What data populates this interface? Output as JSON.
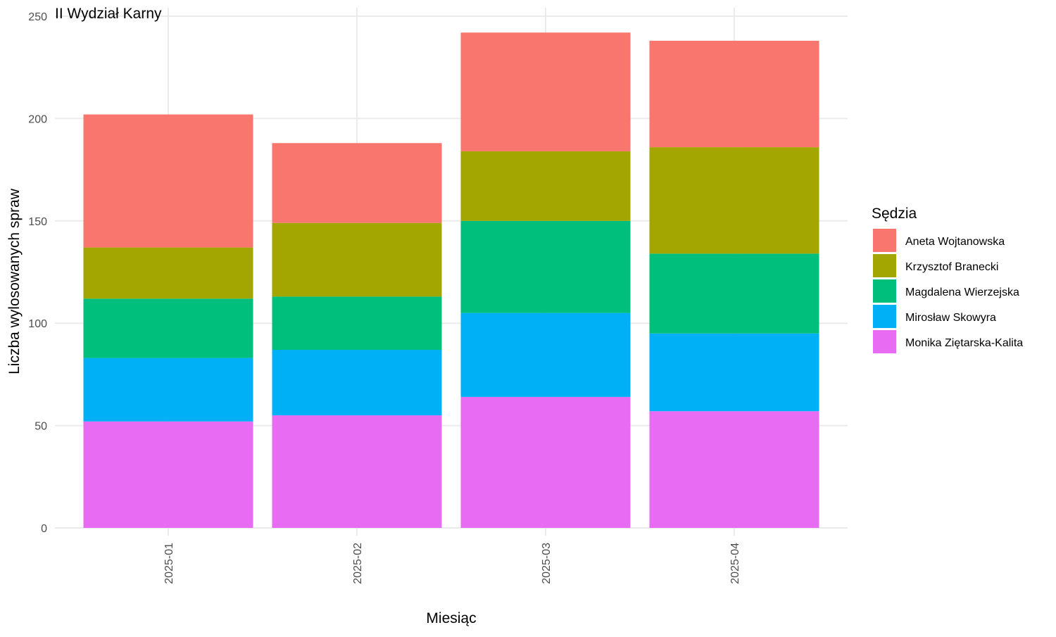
{
  "chart_data": {
    "type": "bar",
    "stacked": true,
    "title": "II Wydział Karny",
    "xlabel": "Miesiąc",
    "ylabel": "Liczba wylosowanych spraw",
    "categories": [
      "2025-01",
      "2025-02",
      "2025-03",
      "2025-04"
    ],
    "ylim": [
      0,
      250
    ],
    "yticks": [
      0,
      50,
      100,
      150,
      200,
      250
    ],
    "grid": true,
    "legend": {
      "title": "Sędzia",
      "position": "right"
    },
    "series": [
      {
        "name": "Monika Ziętarska-Kalita",
        "color": "#E76BF3",
        "values": [
          52,
          55,
          64,
          57
        ]
      },
      {
        "name": "Mirosław Skowyra",
        "color": "#00B0F6",
        "values": [
          31,
          32,
          41,
          38
        ]
      },
      {
        "name": "Magdalena Wierzejska",
        "color": "#00BF7D",
        "values": [
          29,
          26,
          45,
          39
        ]
      },
      {
        "name": "Krzysztof Branecki",
        "color": "#A3A500",
        "values": [
          25,
          36,
          34,
          52
        ]
      },
      {
        "name": "Aneta Wojtanowska",
        "color": "#F8766D",
        "values": [
          65,
          39,
          58,
          52
        ]
      }
    ],
    "legend_order": [
      "Aneta Wojtanowska",
      "Krzysztof Branecki",
      "Magdalena Wierzejska",
      "Mirosław Skowyra",
      "Monika Ziętarska-Kalita"
    ]
  }
}
